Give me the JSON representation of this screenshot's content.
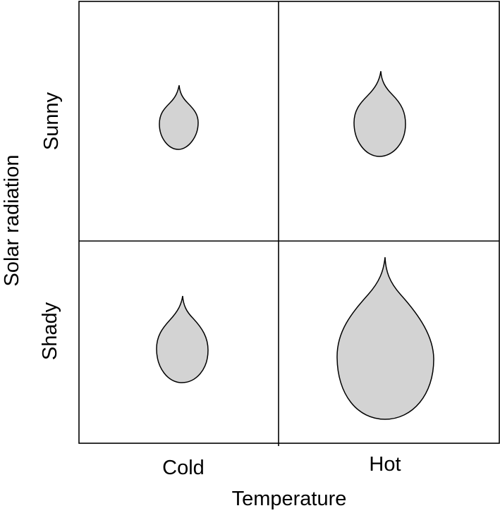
{
  "axes": {
    "x_title": "Temperature",
    "y_title": "Solar radiation"
  },
  "columns": [
    {
      "label": "Cold"
    },
    {
      "label": "Hot"
    }
  ],
  "rows": [
    {
      "label": "Sunny"
    },
    {
      "label": "Shady"
    }
  ],
  "leaves": [
    {
      "cell": "sunny-cold",
      "relative_size": "small"
    },
    {
      "cell": "sunny-hot",
      "relative_size": "medium"
    },
    {
      "cell": "shady-cold",
      "relative_size": "medium"
    },
    {
      "cell": "shady-hot",
      "relative_size": "large"
    }
  ],
  "colors": {
    "leaf_fill": "#d3d3d3",
    "stroke": "#000000"
  }
}
